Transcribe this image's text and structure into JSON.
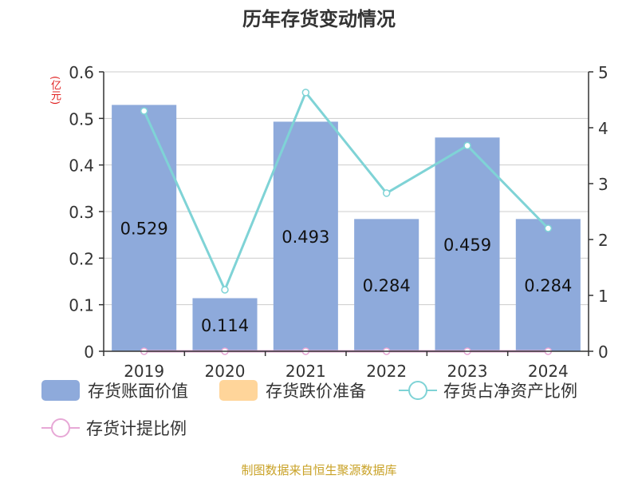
{
  "source_note": "制图数据来自恒生聚源数据库",
  "chart_data": {
    "type": "bar",
    "title": "历年存货变动情况",
    "unit_left": "(亿元)",
    "categories": [
      "2019",
      "2020",
      "2021",
      "2022",
      "2023",
      "2024"
    ],
    "y_left": {
      "range": [
        0,
        0.6
      ],
      "ticks": [
        "0",
        "0.1",
        "0.2",
        "0.3",
        "0.4",
        "0.5",
        "0.6"
      ]
    },
    "y_right": {
      "range": [
        0,
        5
      ],
      "ticks": [
        "0",
        "1",
        "2",
        "3",
        "4",
        "5"
      ]
    },
    "grid": true,
    "legend_position": "bottom",
    "series": [
      {
        "name": "存货账面价值",
        "type": "bar",
        "axis": "left",
        "color": "#8eaadb",
        "values": [
          0.529,
          0.114,
          0.493,
          0.284,
          0.459,
          0.284
        ],
        "labels": [
          "0.529",
          "0.114",
          "0.493",
          "0.284",
          "0.459",
          "0.284"
        ]
      },
      {
        "name": "存货跌价准备",
        "type": "bar",
        "axis": "left",
        "color": "#ffd59a",
        "values": [
          0,
          0,
          0,
          0,
          0,
          0
        ]
      },
      {
        "name": "存货占净资产比例",
        "type": "line",
        "axis": "right",
        "color": "#7fd3d6",
        "values": [
          4.3,
          1.1,
          4.63,
          2.83,
          3.68,
          2.2
        ]
      },
      {
        "name": "存货计提比例",
        "type": "line",
        "axis": "right",
        "color": "#e7a8d6",
        "values": [
          0,
          0,
          0,
          0,
          0,
          0
        ]
      }
    ]
  }
}
